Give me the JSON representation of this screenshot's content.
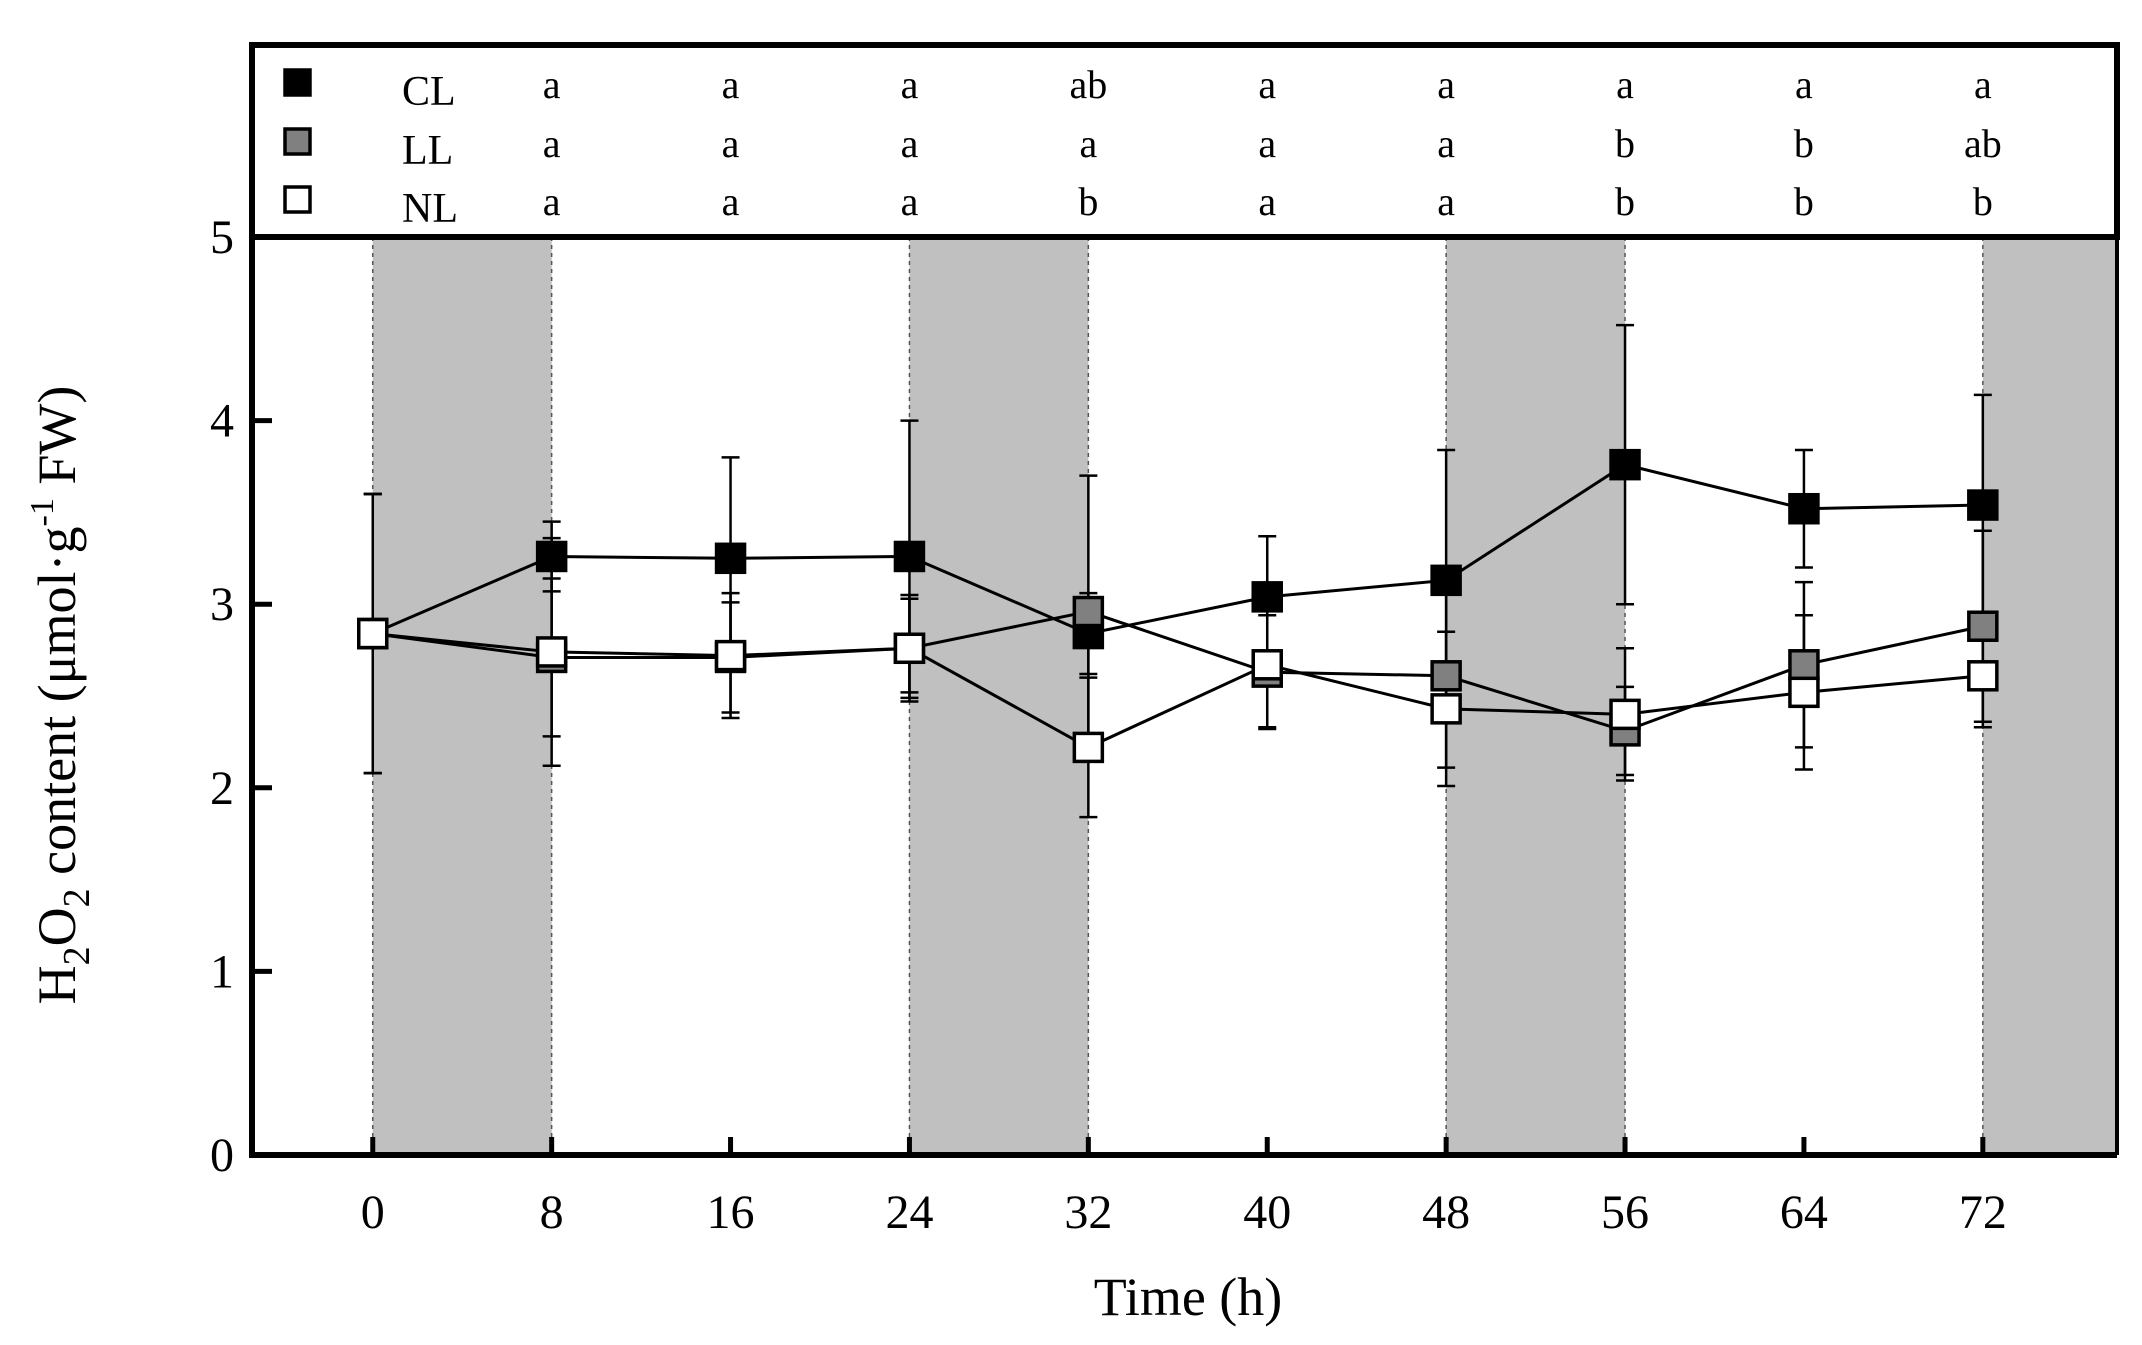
{
  "chart_data": {
    "type": "line",
    "xlabel": "Time (h)",
    "ylabel": {
      "prefix": "H",
      "sub1": "2",
      "mid": "O",
      "sub2": "2",
      "text": " content (μmol·g",
      "sup": "-1",
      "suffix": " FW)"
    },
    "x": [
      0,
      8,
      16,
      24,
      32,
      40,
      48,
      56,
      64,
      72
    ],
    "x_ticks": [
      "0",
      "8",
      "16",
      "24",
      "32",
      "40",
      "48",
      "56",
      "64",
      "72"
    ],
    "xlim": [
      -5.4,
      78
    ],
    "ylim": [
      0,
      5
    ],
    "y_ticks": [
      "0",
      "1",
      "2",
      "3",
      "4",
      "5"
    ],
    "dark_periods": [
      [
        0,
        8
      ],
      [
        24,
        32
      ],
      [
        48,
        56
      ],
      [
        72,
        78
      ]
    ],
    "series": [
      {
        "name": "CL",
        "color": "#000000",
        "values": [
          2.84,
          3.26,
          3.25,
          3.26,
          2.84,
          3.04,
          3.13,
          3.76,
          3.52,
          3.54
        ],
        "errors": [
          0.76,
          0.19,
          0.55,
          0.74,
          0.22,
          0.33,
          0.71,
          0.76,
          0.32,
          0.6
        ],
        "letters": [
          "",
          "a",
          "a",
          "a",
          "ab",
          "a",
          "a",
          "a",
          "a",
          "a"
        ]
      },
      {
        "name": "LL",
        "color": "#808080",
        "values": [
          2.84,
          2.71,
          2.71,
          2.76,
          2.96,
          2.63,
          2.61,
          2.31,
          2.67,
          2.88
        ],
        "errors": [
          0.76,
          0.43,
          0.3,
          0.27,
          0.74,
          0.31,
          0.5,
          0.24,
          0.45,
          0.52
        ],
        "letters": [
          "",
          "a",
          "a",
          "a",
          "a",
          "a",
          "a",
          "b",
          "b",
          "ab"
        ]
      },
      {
        "name": "NL",
        "color": "#ffffff",
        "values": [
          2.84,
          2.74,
          2.72,
          2.76,
          2.22,
          2.67,
          2.43,
          2.4,
          2.52,
          2.61
        ],
        "errors": [
          0.76,
          0.62,
          0.34,
          0.29,
          0.38,
          0.34,
          0.42,
          0.36,
          0.42,
          0.28
        ],
        "letters": [
          "",
          "a",
          "a",
          "a",
          "b",
          "a",
          "a",
          "b",
          "b",
          "b"
        ]
      }
    ]
  }
}
